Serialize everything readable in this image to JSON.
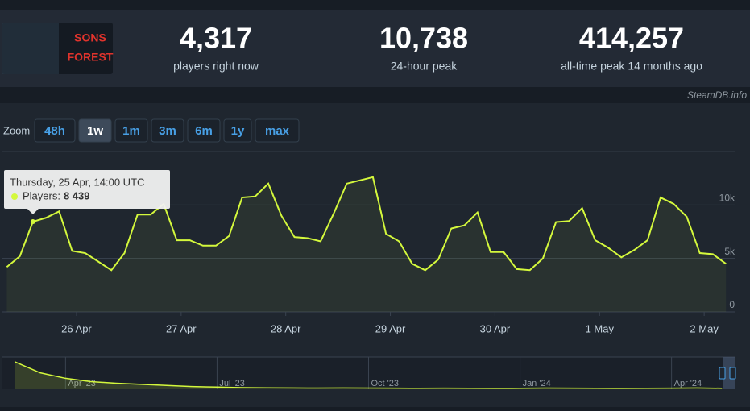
{
  "header": {
    "logo": [
      "SONS",
      "FOREST"
    ],
    "stats": [
      {
        "value": "4,317",
        "label": "players right now"
      },
      {
        "value": "10,738",
        "label": "24-hour peak"
      },
      {
        "value": "414,257",
        "label": "all-time peak 14 months ago"
      }
    ],
    "credit": "SteamDB.info"
  },
  "zoom": {
    "label": "Zoom",
    "buttons": [
      "48h",
      "1w",
      "1m",
      "3m",
      "6m",
      "1y",
      "max"
    ],
    "active": 1
  },
  "chart_data": [
    {
      "type": "line",
      "color": "#d4f83c",
      "x": [
        "25 Apr 08:00",
        "25 Apr 11:00",
        "25 Apr 14:00",
        "25 Apr 17:00",
        "25 Apr 20:00",
        "25 Apr 23:00",
        "26 Apr 02:00",
        "26 Apr 05:00",
        "26 Apr 08:00",
        "26 Apr 11:00",
        "26 Apr 14:00",
        "26 Apr 17:00",
        "26 Apr 20:00",
        "26 Apr 23:00",
        "27 Apr 02:00",
        "27 Apr 05:00",
        "27 Apr 08:00",
        "27 Apr 11:00",
        "27 Apr 14:00",
        "27 Apr 17:00",
        "27 Apr 20:00",
        "27 Apr 23:00",
        "28 Apr 02:00",
        "28 Apr 05:00",
        "28 Apr 08:00",
        "28 Apr 11:00",
        "28 Apr 14:00",
        "28 Apr 17:00",
        "28 Apr 20:00",
        "28 Apr 23:00",
        "29 Apr 02:00",
        "29 Apr 05:00",
        "29 Apr 08:00",
        "29 Apr 11:00",
        "29 Apr 14:00",
        "29 Apr 17:00",
        "29 Apr 20:00",
        "29 Apr 23:00",
        "30 Apr 02:00",
        "30 Apr 05:00",
        "30 Apr 08:00",
        "30 Apr 11:00",
        "30 Apr 14:00",
        "30 Apr 17:00",
        "30 Apr 20:00",
        "30 Apr 23:00",
        "1 May 02:00",
        "1 May 05:00",
        "1 May 08:00",
        "1 May 11:00",
        "1 May 14:00",
        "1 May 17:00",
        "1 May 20:00",
        "1 May 23:00",
        "2 May 02:00",
        "2 May 05:00"
      ],
      "values": [
        4200,
        5200,
        8439,
        8800,
        9400,
        5700,
        5500,
        4700,
        3900,
        5500,
        9100,
        9100,
        10100,
        6700,
        6700,
        6200,
        6200,
        7100,
        10700,
        10800,
        12000,
        9000,
        7000,
        6900,
        6600,
        9200,
        12000,
        12300,
        12600,
        7300,
        6600,
        4500,
        3900,
        4900,
        7800,
        8100,
        9300,
        5600,
        5600,
        4000,
        3900,
        5000,
        8400,
        8500,
        9700,
        6700,
        6000,
        5100,
        5800,
        6700,
        10700,
        10100,
        8900,
        5500,
        5400,
        4500
      ],
      "value_labels": [
        null,
        null,
        "8 439",
        null,
        null,
        null,
        null,
        null,
        null,
        null,
        null,
        null,
        null,
        null,
        null,
        null,
        null,
        null,
        null,
        null,
        null,
        null,
        null,
        null,
        null,
        null,
        null,
        null,
        null,
        null,
        null,
        null,
        null,
        null,
        null,
        null,
        null,
        null,
        null,
        null,
        null,
        null,
        null,
        null,
        null,
        null,
        null,
        null,
        null,
        null,
        null,
        null,
        null,
        null,
        null,
        null
      ],
      "xlim": [
        "25 Apr 07:00",
        "2 May 07:00"
      ],
      "xticks": [
        "26 Apr",
        "27 Apr",
        "28 Apr",
        "29 Apr",
        "30 Apr",
        "1 May",
        "2 May"
      ],
      "ylim": [
        0,
        15000
      ],
      "yticks": [
        0,
        {
          "value": 5000,
          "label": "5k"
        },
        {
          "value": 10000,
          "label": "10k"
        }
      ],
      "grid": true,
      "tooltip": {
        "title": "Thursday, 25 Apr, 14:00 UTC",
        "label": "Players:",
        "index": 2
      }
    },
    {
      "type": "line",
      "color": "#d4f83c",
      "categories": [
        null,
        null,
        "Apr '23",
        null,
        null,
        null,
        null,
        null,
        "Jul '23",
        null,
        null,
        null,
        null,
        null,
        "Oct '23",
        null,
        null,
        null,
        null,
        null,
        "Jan '24",
        null,
        null,
        null,
        null,
        null,
        "Apr '24",
        null,
        null
      ],
      "values": [
        250000,
        150000,
        100000,
        70000,
        55000,
        45000,
        35000,
        25000,
        20000,
        15000,
        13000,
        12000,
        11000,
        12000,
        11000,
        10000,
        9000,
        10000,
        9000,
        8000,
        9000,
        11000,
        10000,
        9000,
        8000,
        9000,
        10000,
        12000,
        9000
      ],
      "ylim": [
        0,
        280000
      ]
    }
  ]
}
